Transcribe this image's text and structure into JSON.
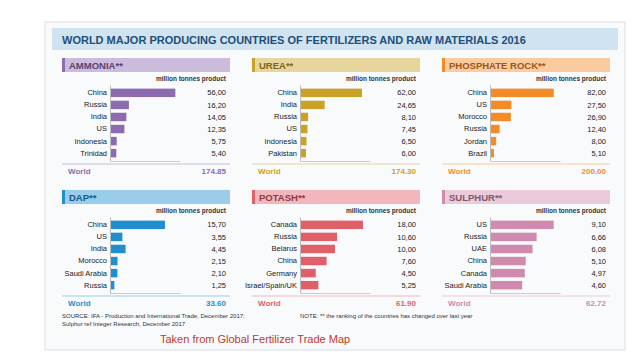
{
  "title": "WORLD MAJOR PRODUCING COUNTRIES OF FERTILIZERS AND RAW MATERIALS 2016",
  "source": [
    "SOURCE: IFA - Production and International Trade, December 2017;",
    "Sulphur ref Integer Research, December 2017"
  ],
  "note": "NOTE: ** the ranking of the countries has changed over last year",
  "caption": "Taken from Global Fertilizer Trade Map",
  "chart_data": [
    {
      "type": "bar",
      "title": "AMMONIA**",
      "subtitle": "million tonnes product",
      "orientation": "horizontal",
      "categories": [
        "China",
        "Russia",
        "India",
        "US",
        "Indonesia",
        "Trinidad"
      ],
      "values": [
        56.0,
        16.2,
        14.05,
        12.35,
        5.75,
        5.4
      ],
      "value_labels": [
        "56,00",
        "16,20",
        "14,05",
        "12,35",
        "5,75",
        "5,40"
      ],
      "data_labels": true,
      "tick_labels": "y",
      "color": "#8c6bb1",
      "xlim": [
        0,
        60
      ],
      "total": {
        "label": "World",
        "value": 174.85,
        "value_label": "174.85"
      }
    },
    {
      "type": "bar",
      "title": "UREA**",
      "subtitle": "million tonnes product",
      "orientation": "horizontal",
      "categories": [
        "China",
        "India",
        "Russia",
        "US",
        "Indonesia",
        "Pakistan"
      ],
      "values": [
        62.0,
        24.65,
        8.1,
        7.45,
        6.5,
        6.0
      ],
      "value_labels": [
        "62,00",
        "24,65",
        "8,10",
        "7,45",
        "6,50",
        "6,00"
      ],
      "data_labels": true,
      "tick_labels": "y",
      "color": "#c9a227",
      "xlim": [
        0,
        70
      ],
      "total": {
        "label": "World",
        "value": 174.3,
        "value_label": "174.30"
      }
    },
    {
      "type": "bar",
      "title": "PHOSPHATE ROCK**",
      "subtitle": "million tonnes product",
      "orientation": "horizontal",
      "categories": [
        "China",
        "US",
        "Morocco",
        "Russia",
        "Jordan",
        "Brazil"
      ],
      "values": [
        82.0,
        27.5,
        26.9,
        12.4,
        8.0,
        5.1
      ],
      "value_labels": [
        "82,00",
        "27,50",
        "26,90",
        "12,40",
        "8,00",
        "5,10"
      ],
      "data_labels": true,
      "tick_labels": "y",
      "color": "#f28c28",
      "xlim": [
        0,
        90
      ],
      "total": {
        "label": "World",
        "value": 200.0,
        "value_label": "200.00"
      }
    },
    {
      "type": "bar",
      "title": "DAP**",
      "subtitle": "million tonnes product",
      "orientation": "horizontal",
      "categories": [
        "China",
        "US",
        "India",
        "Morocco",
        "Saudi Arabia",
        "Russia"
      ],
      "values": [
        15.7,
        3.55,
        4.45,
        2.15,
        2.1,
        1.25
      ],
      "value_labels": [
        "15,70",
        "3,55",
        "4,45",
        "2,15",
        "2,10",
        "1,25"
      ],
      "data_labels": true,
      "tick_labels": "y",
      "color": "#1f8fd0",
      "xlim": [
        0,
        20
      ],
      "total": {
        "label": "World",
        "value": 33.6,
        "value_label": "33.60"
      }
    },
    {
      "type": "bar",
      "title": "POTASH**",
      "subtitle": "million tonnes product",
      "orientation": "horizontal",
      "categories": [
        "Canada",
        "Russia",
        "Belarus",
        "China",
        "Germany",
        "Israel/Spain/UK"
      ],
      "values": [
        18.0,
        10.6,
        10.0,
        7.6,
        4.5,
        5.25
      ],
      "value_labels": [
        "18,00",
        "10,60",
        "10,00",
        "7,60",
        "4,50",
        "5,25"
      ],
      "data_labels": true,
      "tick_labels": "y",
      "color": "#e0606a",
      "xlim": [
        0,
        20
      ],
      "total": {
        "label": "World",
        "value": 61.9,
        "value_label": "61.90"
      }
    },
    {
      "type": "bar",
      "title": "SULPHUR**",
      "subtitle": "million tonnes product",
      "orientation": "horizontal",
      "categories": [
        "US",
        "Russia",
        "UAE",
        "China",
        "Canada",
        "Saudi Arabia"
      ],
      "values": [
        9.1,
        6.66,
        6.08,
        5.1,
        4.97,
        4.6
      ],
      "value_labels": [
        "9,10",
        "6,66",
        "6,08",
        "5,10",
        "4,97",
        "4,60"
      ],
      "data_labels": true,
      "tick_labels": "y",
      "color": "#d08aae",
      "xlim": [
        0,
        10
      ],
      "total": {
        "label": "World",
        "value": 62.72,
        "value_label": "62.72"
      }
    }
  ]
}
